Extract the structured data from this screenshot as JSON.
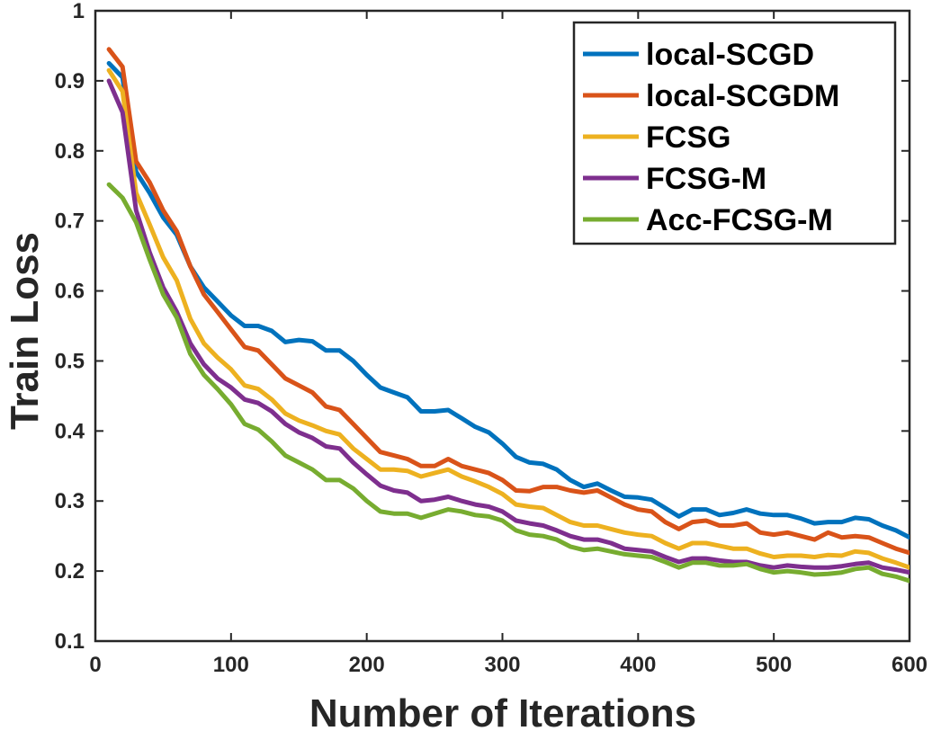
{
  "chart_data": {
    "type": "line",
    "title": "",
    "xlabel": "Number of Iterations",
    "ylabel": "Train Loss",
    "xlim": [
      0,
      600
    ],
    "ylim": [
      0.1,
      1
    ],
    "xticks": [
      0,
      100,
      200,
      300,
      400,
      500,
      600
    ],
    "xtick_labels": [
      "0",
      "100",
      "200",
      "300",
      "400",
      "500",
      "600"
    ],
    "yticks": [
      0.1,
      0.2,
      0.3,
      0.4,
      0.5,
      0.6,
      0.7,
      0.8,
      0.9,
      1.0
    ],
    "ytick_labels": [
      "0.1",
      "0.2",
      "0.3",
      "0.4",
      "0.5",
      "0.6",
      "0.7",
      "0.8",
      "0.9",
      "1"
    ],
    "grid": false,
    "legend": "top-right",
    "x": [
      10,
      20,
      30,
      40,
      50,
      60,
      70,
      80,
      90,
      100,
      110,
      120,
      130,
      140,
      150,
      160,
      170,
      180,
      190,
      200,
      210,
      220,
      230,
      240,
      250,
      260,
      270,
      280,
      290,
      300,
      310,
      320,
      330,
      340,
      350,
      360,
      370,
      380,
      390,
      400,
      410,
      420,
      430,
      440,
      450,
      460,
      470,
      480,
      490,
      500,
      510,
      520,
      530,
      540,
      550,
      560,
      570,
      580,
      590,
      600
    ],
    "series": [
      {
        "name": "local-SCGD",
        "color": "#0072BD",
        "values": [
          0.925,
          0.905,
          0.77,
          0.74,
          0.705,
          0.68,
          0.635,
          0.605,
          0.585,
          0.565,
          0.55,
          0.55,
          0.543,
          0.527,
          0.53,
          0.528,
          0.515,
          0.515,
          0.5,
          0.48,
          0.462,
          0.455,
          0.448,
          0.428,
          0.428,
          0.43,
          0.418,
          0.406,
          0.398,
          0.382,
          0.363,
          0.355,
          0.353,
          0.345,
          0.33,
          0.32,
          0.325,
          0.315,
          0.306,
          0.305,
          0.302,
          0.29,
          0.278,
          0.288,
          0.288,
          0.28,
          0.283,
          0.288,
          0.282,
          0.28,
          0.28,
          0.275,
          0.268,
          0.27,
          0.27,
          0.276,
          0.274,
          0.265,
          0.258,
          0.248
        ]
      },
      {
        "name": "local-SCGDM",
        "color": "#D95319",
        "values": [
          0.945,
          0.92,
          0.785,
          0.755,
          0.715,
          0.685,
          0.635,
          0.595,
          0.57,
          0.545,
          0.52,
          0.515,
          0.495,
          0.475,
          0.465,
          0.455,
          0.435,
          0.43,
          0.41,
          0.39,
          0.37,
          0.365,
          0.36,
          0.35,
          0.35,
          0.36,
          0.35,
          0.345,
          0.34,
          0.33,
          0.315,
          0.314,
          0.32,
          0.32,
          0.315,
          0.312,
          0.315,
          0.305,
          0.295,
          0.288,
          0.285,
          0.27,
          0.26,
          0.27,
          0.272,
          0.265,
          0.265,
          0.268,
          0.255,
          0.252,
          0.255,
          0.25,
          0.245,
          0.255,
          0.248,
          0.25,
          0.248,
          0.24,
          0.232,
          0.226
        ]
      },
      {
        "name": "FCSG",
        "color": "#EDB120",
        "values": [
          0.915,
          0.885,
          0.74,
          0.695,
          0.648,
          0.615,
          0.56,
          0.525,
          0.505,
          0.488,
          0.465,
          0.46,
          0.445,
          0.425,
          0.415,
          0.408,
          0.4,
          0.395,
          0.375,
          0.36,
          0.345,
          0.345,
          0.343,
          0.335,
          0.34,
          0.345,
          0.335,
          0.328,
          0.32,
          0.31,
          0.295,
          0.292,
          0.29,
          0.28,
          0.27,
          0.265,
          0.265,
          0.26,
          0.255,
          0.252,
          0.25,
          0.24,
          0.232,
          0.24,
          0.24,
          0.236,
          0.232,
          0.232,
          0.225,
          0.22,
          0.222,
          0.222,
          0.22,
          0.223,
          0.222,
          0.228,
          0.226,
          0.218,
          0.212,
          0.205
        ]
      },
      {
        "name": "FCSG-M",
        "color": "#7E2F8E",
        "values": [
          0.9,
          0.855,
          0.715,
          0.655,
          0.605,
          0.57,
          0.525,
          0.495,
          0.475,
          0.462,
          0.445,
          0.44,
          0.428,
          0.41,
          0.398,
          0.39,
          0.378,
          0.375,
          0.355,
          0.338,
          0.322,
          0.315,
          0.312,
          0.3,
          0.302,
          0.306,
          0.3,
          0.295,
          0.292,
          0.285,
          0.272,
          0.268,
          0.265,
          0.258,
          0.25,
          0.245,
          0.245,
          0.24,
          0.232,
          0.23,
          0.228,
          0.22,
          0.213,
          0.218,
          0.218,
          0.215,
          0.213,
          0.213,
          0.208,
          0.205,
          0.208,
          0.206,
          0.205,
          0.205,
          0.207,
          0.21,
          0.212,
          0.205,
          0.202,
          0.198
        ]
      },
      {
        "name": "Acc-FCSG-M",
        "color": "#77AC30",
        "values": [
          0.752,
          0.733,
          0.698,
          0.645,
          0.595,
          0.562,
          0.51,
          0.48,
          0.46,
          0.438,
          0.41,
          0.402,
          0.385,
          0.365,
          0.355,
          0.345,
          0.33,
          0.33,
          0.318,
          0.3,
          0.285,
          0.282,
          0.282,
          0.276,
          0.282,
          0.288,
          0.285,
          0.28,
          0.278,
          0.272,
          0.258,
          0.252,
          0.25,
          0.245,
          0.235,
          0.23,
          0.232,
          0.228,
          0.224,
          0.222,
          0.22,
          0.213,
          0.205,
          0.212,
          0.212,
          0.208,
          0.208,
          0.21,
          0.203,
          0.198,
          0.2,
          0.198,
          0.195,
          0.196,
          0.198,
          0.203,
          0.205,
          0.196,
          0.192,
          0.186
        ]
      }
    ]
  }
}
